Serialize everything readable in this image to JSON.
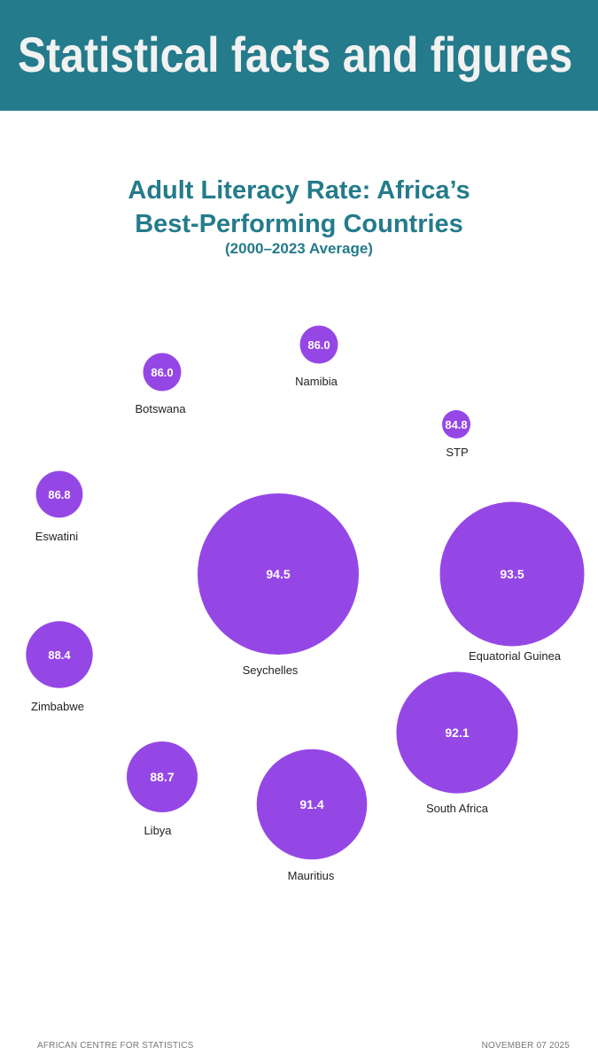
{
  "header": {
    "title": "Statistical facts and figures"
  },
  "colors": {
    "banner": "#247b8b",
    "title": "#247b8b",
    "bubble": "#9547e6",
    "bubble_text": "#ffffff",
    "label": "#222222"
  },
  "chart_data": {
    "type": "bubble",
    "title_line1": "Adult Literacy Rate: Africa’s",
    "title_line2": "Best-Performing Countries",
    "subtitle": "(2000–2023 Average)",
    "points": [
      {
        "country": "Namibia",
        "value": 86.0
      },
      {
        "country": "Botswana",
        "value": 86.0
      },
      {
        "country": "STP",
        "value": 84.8
      },
      {
        "country": "Eswatini",
        "value": 86.8
      },
      {
        "country": "Seychelles",
        "value": 94.5
      },
      {
        "country": "Equatorial Guinea",
        "value": 93.5
      },
      {
        "country": "Zimbabwe",
        "value": 88.4
      },
      {
        "country": "South Africa",
        "value": 92.1
      },
      {
        "country": "Libya",
        "value": 88.7
      },
      {
        "country": "Mauritius",
        "value": 91.4
      }
    ]
  },
  "footer": {
    "left": "AFRICAN CENTRE FOR STATISTICS",
    "right": "NOVEMBER 07 2025"
  }
}
